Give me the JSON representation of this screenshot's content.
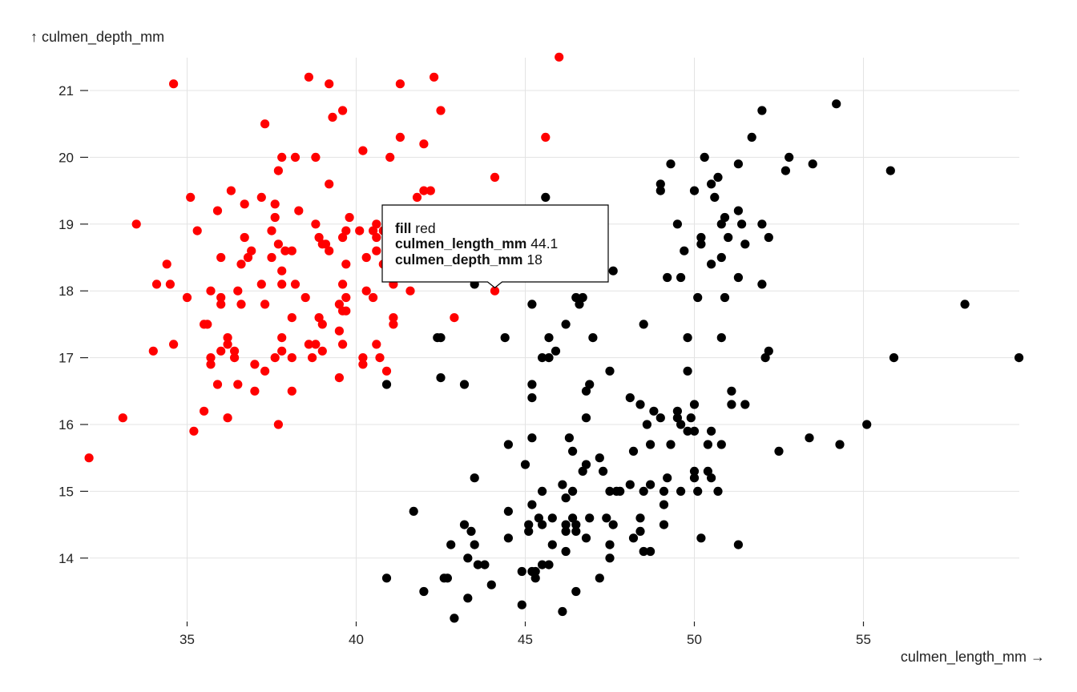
{
  "chart_data": {
    "type": "scatter",
    "xlabel": "culmen_length_mm →",
    "ylabel": "↑ culmen_depth_mm",
    "xlim": [
      32.0,
      59.6
    ],
    "ylim": [
      13.1,
      21.5
    ],
    "xticks": [
      35,
      40,
      45,
      50,
      55
    ],
    "yticks": [
      14,
      15,
      16,
      17,
      18,
      19,
      20,
      21
    ],
    "grid": true,
    "series": [
      {
        "name": "red",
        "color": "#ff0000",
        "points": [
          [
            32.1,
            15.5
          ],
          [
            33.1,
            16.1
          ],
          [
            33.5,
            19.0
          ],
          [
            34.0,
            17.1
          ],
          [
            34.1,
            18.1
          ],
          [
            34.4,
            18.4
          ],
          [
            34.5,
            18.1
          ],
          [
            34.6,
            17.2
          ],
          [
            34.6,
            21.1
          ],
          [
            35.0,
            17.9
          ],
          [
            35.1,
            19.4
          ],
          [
            35.2,
            15.9
          ],
          [
            35.3,
            18.9
          ],
          [
            35.5,
            16.2
          ],
          [
            35.5,
            17.5
          ],
          [
            35.6,
            17.5
          ],
          [
            35.7,
            16.9
          ],
          [
            35.7,
            17.0
          ],
          [
            35.7,
            18.0
          ],
          [
            35.9,
            16.6
          ],
          [
            35.9,
            19.2
          ],
          [
            36.0,
            17.1
          ],
          [
            36.0,
            17.8
          ],
          [
            36.0,
            17.9
          ],
          [
            36.0,
            18.5
          ],
          [
            36.2,
            16.1
          ],
          [
            36.2,
            17.2
          ],
          [
            36.2,
            17.3
          ],
          [
            36.3,
            19.5
          ],
          [
            36.4,
            17.0
          ],
          [
            36.4,
            17.1
          ],
          [
            36.5,
            16.6
          ],
          [
            36.5,
            18.0
          ],
          [
            36.6,
            17.8
          ],
          [
            36.6,
            18.4
          ],
          [
            36.7,
            18.8
          ],
          [
            36.7,
            19.3
          ],
          [
            36.8,
            18.5
          ],
          [
            36.9,
            18.6
          ],
          [
            37.0,
            16.5
          ],
          [
            37.0,
            16.9
          ],
          [
            37.2,
            18.1
          ],
          [
            37.2,
            19.4
          ],
          [
            37.3,
            16.8
          ],
          [
            37.3,
            17.8
          ],
          [
            37.3,
            20.5
          ],
          [
            37.5,
            18.5
          ],
          [
            37.5,
            18.9
          ],
          [
            37.6,
            17.0
          ],
          [
            37.6,
            19.1
          ],
          [
            37.6,
            19.3
          ],
          [
            37.7,
            16.0
          ],
          [
            37.7,
            18.7
          ],
          [
            37.7,
            19.8
          ],
          [
            37.8,
            17.1
          ],
          [
            37.8,
            17.3
          ],
          [
            37.8,
            18.1
          ],
          [
            37.8,
            18.3
          ],
          [
            37.8,
            20.0
          ],
          [
            37.9,
            18.6
          ],
          [
            38.1,
            16.5
          ],
          [
            38.1,
            17.0
          ],
          [
            38.1,
            17.6
          ],
          [
            38.1,
            18.6
          ],
          [
            38.2,
            18.1
          ],
          [
            38.2,
            20.0
          ],
          [
            38.3,
            19.2
          ],
          [
            38.5,
            17.9
          ],
          [
            38.6,
            17.2
          ],
          [
            38.6,
            21.2
          ],
          [
            38.7,
            17.0
          ],
          [
            38.8,
            17.2
          ],
          [
            38.8,
            19.0
          ],
          [
            38.8,
            20.0
          ],
          [
            38.9,
            17.6
          ],
          [
            38.9,
            18.8
          ],
          [
            39.0,
            17.1
          ],
          [
            39.0,
            17.5
          ],
          [
            39.0,
            18.7
          ],
          [
            39.1,
            18.7
          ],
          [
            39.2,
            18.6
          ],
          [
            39.2,
            19.6
          ],
          [
            39.2,
            21.1
          ],
          [
            39.3,
            20.6
          ],
          [
            39.5,
            16.7
          ],
          [
            39.5,
            17.4
          ],
          [
            39.5,
            17.8
          ],
          [
            39.6,
            17.2
          ],
          [
            39.6,
            17.7
          ],
          [
            39.6,
            18.1
          ],
          [
            39.6,
            18.8
          ],
          [
            39.6,
            20.7
          ],
          [
            39.7,
            17.7
          ],
          [
            39.7,
            17.9
          ],
          [
            39.7,
            18.4
          ],
          [
            39.7,
            18.9
          ],
          [
            39.8,
            19.1
          ],
          [
            40.1,
            18.9
          ],
          [
            40.2,
            16.9
          ],
          [
            40.2,
            17.0
          ],
          [
            40.2,
            20.1
          ],
          [
            40.3,
            18.0
          ],
          [
            40.3,
            18.5
          ],
          [
            40.5,
            17.9
          ],
          [
            40.5,
            18.9
          ],
          [
            40.6,
            17.2
          ],
          [
            40.6,
            18.6
          ],
          [
            40.6,
            18.8
          ],
          [
            40.6,
            19.0
          ],
          [
            40.7,
            17.0
          ],
          [
            40.8,
            18.4
          ],
          [
            40.8,
            18.9
          ],
          [
            40.9,
            16.8
          ],
          [
            41.0,
            20.0
          ],
          [
            41.1,
            17.5
          ],
          [
            41.1,
            17.6
          ],
          [
            41.1,
            18.1
          ],
          [
            41.1,
            18.2
          ],
          [
            41.1,
            18.6
          ],
          [
            41.1,
            19.0
          ],
          [
            41.3,
            20.3
          ],
          [
            41.3,
            21.1
          ],
          [
            41.4,
            18.5
          ],
          [
            41.5,
            18.3
          ],
          [
            41.6,
            18.0
          ],
          [
            41.8,
            19.4
          ],
          [
            42.0,
            19.5
          ],
          [
            42.0,
            20.2
          ],
          [
            42.2,
            18.5
          ],
          [
            42.2,
            19.5
          ],
          [
            42.3,
            21.2
          ],
          [
            42.5,
            20.7
          ],
          [
            42.8,
            18.5
          ],
          [
            42.9,
            17.6
          ],
          [
            44.1,
            18.0
          ],
          [
            44.1,
            19.7
          ],
          [
            45.6,
            20.3
          ],
          [
            46.0,
            21.5
          ]
        ]
      },
      {
        "name": "black",
        "color": "#000000",
        "points": [
          [
            40.9,
            13.7
          ],
          [
            40.9,
            16.6
          ],
          [
            41.7,
            14.7
          ],
          [
            42.0,
            13.5
          ],
          [
            42.4,
            17.3
          ],
          [
            42.5,
            16.7
          ],
          [
            42.5,
            17.3
          ],
          [
            42.6,
            13.7
          ],
          [
            42.7,
            13.7
          ],
          [
            42.8,
            14.2
          ],
          [
            42.9,
            13.1
          ],
          [
            43.2,
            14.5
          ],
          [
            43.2,
            16.6
          ],
          [
            43.3,
            13.4
          ],
          [
            43.3,
            14.0
          ],
          [
            43.4,
            14.4
          ],
          [
            43.5,
            14.2
          ],
          [
            43.5,
            15.2
          ],
          [
            43.5,
            18.1
          ],
          [
            43.6,
            13.9
          ],
          [
            43.8,
            13.9
          ],
          [
            44.0,
            13.6
          ],
          [
            44.4,
            17.3
          ],
          [
            44.5,
            14.3
          ],
          [
            44.5,
            14.7
          ],
          [
            44.5,
            15.7
          ],
          [
            44.9,
            13.3
          ],
          [
            44.9,
            13.8
          ],
          [
            45.0,
            15.4
          ],
          [
            45.1,
            14.5
          ],
          [
            45.1,
            14.4
          ],
          [
            45.2,
            13.8
          ],
          [
            45.2,
            14.8
          ],
          [
            45.2,
            15.8
          ],
          [
            45.2,
            16.4
          ],
          [
            45.2,
            16.6
          ],
          [
            45.2,
            17.8
          ],
          [
            45.3,
            13.7
          ],
          [
            45.3,
            13.8
          ],
          [
            45.4,
            14.6
          ],
          [
            45.5,
            13.9
          ],
          [
            45.5,
            14.5
          ],
          [
            45.5,
            15.0
          ],
          [
            45.5,
            17.0
          ],
          [
            45.6,
            19.4
          ],
          [
            45.7,
            13.9
          ],
          [
            45.7,
            17.0
          ],
          [
            45.7,
            17.3
          ],
          [
            45.8,
            14.2
          ],
          [
            45.8,
            14.6
          ],
          [
            45.9,
            17.1
          ],
          [
            46.1,
            13.2
          ],
          [
            46.1,
            15.1
          ],
          [
            46.2,
            14.1
          ],
          [
            46.2,
            14.4
          ],
          [
            46.2,
            14.5
          ],
          [
            46.2,
            14.9
          ],
          [
            46.2,
            17.5
          ],
          [
            46.3,
            15.8
          ],
          [
            46.4,
            14.6
          ],
          [
            46.4,
            15.0
          ],
          [
            46.4,
            15.6
          ],
          [
            46.5,
            13.5
          ],
          [
            46.5,
            14.4
          ],
          [
            46.5,
            14.5
          ],
          [
            46.5,
            17.9
          ],
          [
            46.6,
            17.8
          ],
          [
            46.7,
            15.3
          ],
          [
            46.7,
            17.9
          ],
          [
            46.8,
            14.3
          ],
          [
            46.8,
            15.4
          ],
          [
            46.8,
            16.1
          ],
          [
            46.8,
            16.5
          ],
          [
            46.9,
            14.6
          ],
          [
            46.9,
            16.6
          ],
          [
            47.0,
            17.3
          ],
          [
            47.2,
            13.7
          ],
          [
            47.2,
            15.5
          ],
          [
            47.3,
            15.3
          ],
          [
            47.4,
            14.6
          ],
          [
            47.5,
            14.0
          ],
          [
            47.5,
            14.2
          ],
          [
            47.5,
            15.0
          ],
          [
            47.5,
            16.8
          ],
          [
            47.6,
            14.5
          ],
          [
            47.6,
            18.3
          ],
          [
            47.7,
            15.0
          ],
          [
            47.8,
            15.0
          ],
          [
            48.1,
            15.1
          ],
          [
            48.1,
            16.4
          ],
          [
            48.2,
            14.3
          ],
          [
            48.2,
            15.6
          ],
          [
            48.4,
            14.4
          ],
          [
            48.4,
            14.6
          ],
          [
            48.4,
            16.3
          ],
          [
            48.5,
            14.1
          ],
          [
            48.5,
            15.0
          ],
          [
            48.5,
            17.5
          ],
          [
            48.6,
            16.0
          ],
          [
            48.7,
            14.1
          ],
          [
            48.7,
            15.1
          ],
          [
            48.7,
            15.7
          ],
          [
            48.8,
            16.2
          ],
          [
            49.0,
            16.1
          ],
          [
            49.0,
            19.5
          ],
          [
            49.0,
            19.6
          ],
          [
            49.1,
            14.5
          ],
          [
            49.1,
            14.8
          ],
          [
            49.1,
            15.0
          ],
          [
            49.2,
            15.2
          ],
          [
            49.2,
            18.2
          ],
          [
            49.3,
            15.7
          ],
          [
            49.3,
            19.9
          ],
          [
            49.5,
            16.1
          ],
          [
            49.5,
            16.2
          ],
          [
            49.5,
            19.0
          ],
          [
            49.6,
            15.0
          ],
          [
            49.6,
            16.0
          ],
          [
            49.6,
            18.2
          ],
          [
            49.7,
            18.6
          ],
          [
            49.8,
            15.9
          ],
          [
            49.8,
            16.8
          ],
          [
            49.8,
            17.3
          ],
          [
            49.9,
            16.1
          ],
          [
            50.0,
            15.2
          ],
          [
            50.0,
            15.3
          ],
          [
            50.0,
            15.9
          ],
          [
            50.0,
            16.3
          ],
          [
            50.0,
            19.5
          ],
          [
            50.1,
            15.0
          ],
          [
            50.1,
            17.9
          ],
          [
            50.2,
            14.3
          ],
          [
            50.2,
            18.7
          ],
          [
            50.2,
            18.8
          ],
          [
            50.3,
            20.0
          ],
          [
            50.4,
            15.3
          ],
          [
            50.4,
            15.7
          ],
          [
            50.5,
            15.2
          ],
          [
            50.5,
            15.9
          ],
          [
            50.5,
            18.4
          ],
          [
            50.5,
            19.6
          ],
          [
            50.6,
            19.4
          ],
          [
            50.7,
            15.0
          ],
          [
            50.7,
            19.7
          ],
          [
            50.8,
            15.7
          ],
          [
            50.8,
            17.3
          ],
          [
            50.8,
            18.5
          ],
          [
            50.8,
            19.0
          ],
          [
            50.9,
            17.9
          ],
          [
            50.9,
            19.1
          ],
          [
            51.0,
            18.8
          ],
          [
            51.1,
            16.3
          ],
          [
            51.1,
            16.5
          ],
          [
            51.3,
            14.2
          ],
          [
            51.3,
            18.2
          ],
          [
            51.3,
            19.2
          ],
          [
            51.3,
            19.9
          ],
          [
            51.4,
            19.0
          ],
          [
            51.5,
            16.3
          ],
          [
            51.5,
            18.7
          ],
          [
            51.7,
            20.3
          ],
          [
            52.0,
            18.1
          ],
          [
            52.0,
            19.0
          ],
          [
            52.0,
            20.7
          ],
          [
            52.1,
            17.0
          ],
          [
            52.2,
            17.1
          ],
          [
            52.2,
            18.8
          ],
          [
            52.5,
            15.6
          ],
          [
            52.7,
            19.8
          ],
          [
            52.8,
            20.0
          ],
          [
            53.4,
            15.8
          ],
          [
            53.5,
            19.9
          ],
          [
            54.2,
            20.8
          ],
          [
            54.3,
            15.7
          ],
          [
            55.1,
            16.0
          ],
          [
            55.8,
            19.8
          ],
          [
            55.9,
            17.0
          ],
          [
            58.0,
            17.8
          ],
          [
            59.6,
            17.0
          ]
        ]
      }
    ]
  },
  "tooltip": {
    "fill_key": "fill",
    "fill_value": "red",
    "x_key": "culmen_length_mm",
    "x_value": "44.1",
    "y_key": "culmen_depth_mm",
    "y_value": "18",
    "point": [
      44.1,
      18.0
    ]
  }
}
